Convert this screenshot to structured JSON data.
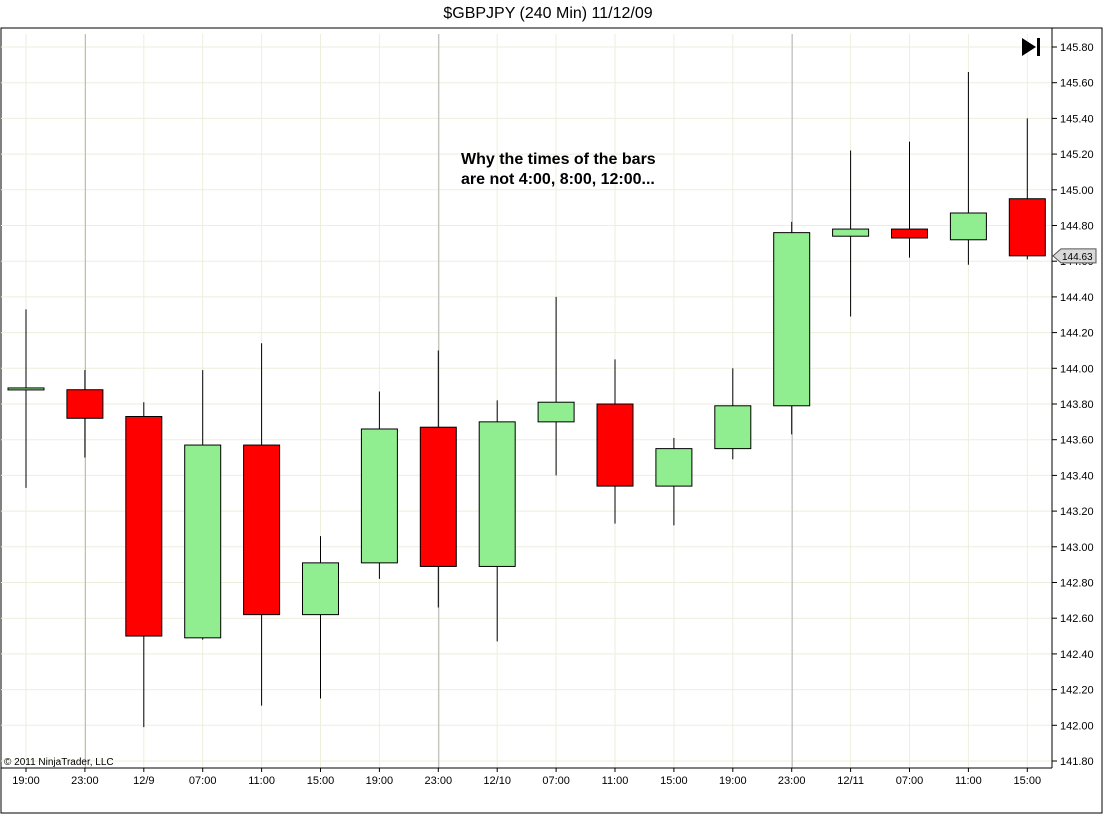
{
  "title": "$GBPJPY (240 Min)  11/12/09",
  "annotation_lines": [
    "Why the times of the bars",
    "are not 4:00, 8:00, 12:00..."
  ],
  "copyright": "© 2011 NinjaTrader, LLC",
  "last_price_label": "144.63",
  "colors": {
    "up": "#90ee90",
    "down": "#ff0000",
    "outline": "#000000",
    "grid": "#eeeedd",
    "session": "#b4b4b4"
  },
  "icons": {
    "play_end": "skip-to-end-icon"
  },
  "chart_data": {
    "type": "candlestick",
    "x_tick_labels": [
      "19:00",
      "23:00",
      "12/9",
      "07:00",
      "11:00",
      "15:00",
      "19:00",
      "23:00",
      "12/10",
      "07:00",
      "11:00",
      "15:00",
      "19:00",
      "23:00",
      "12/11",
      "07:00",
      "11:00",
      "15:00"
    ],
    "session_break_indices": [
      1,
      7,
      13
    ],
    "ylim": [
      141.8,
      145.85
    ],
    "y_ticks": [
      141.8,
      142.0,
      142.2,
      142.4,
      142.6,
      142.8,
      143.0,
      143.2,
      143.4,
      143.6,
      143.8,
      144.0,
      144.2,
      144.4,
      144.6,
      144.8,
      145.0,
      145.2,
      145.4,
      145.6,
      145.8
    ],
    "y_tick_labels": [
      "141.80",
      "142.00",
      "142.20",
      "142.40",
      "142.60",
      "142.80",
      "143.00",
      "143.20",
      "143.40",
      "143.60",
      "143.80",
      "144.00",
      "144.20",
      "144.40",
      "144.60",
      "144.80",
      "145.00",
      "145.20",
      "145.40",
      "145.60",
      "145.80"
    ],
    "bars": [
      {
        "time": "19:00",
        "open": 143.88,
        "high": 144.33,
        "low": 143.33,
        "close": 143.89
      },
      {
        "time": "23:00",
        "open": 143.88,
        "high": 143.99,
        "low": 143.5,
        "close": 143.72
      },
      {
        "time": "12/9",
        "open": 143.73,
        "high": 143.81,
        "low": 141.99,
        "close": 142.5
      },
      {
        "time": "07:00",
        "open": 142.49,
        "high": 143.99,
        "low": 142.48,
        "close": 143.57
      },
      {
        "time": "11:00",
        "open": 143.57,
        "high": 144.14,
        "low": 142.11,
        "close": 142.62
      },
      {
        "time": "15:00",
        "open": 142.62,
        "high": 143.06,
        "low": 142.15,
        "close": 142.91
      },
      {
        "time": "19:00",
        "open": 142.91,
        "high": 143.87,
        "low": 142.82,
        "close": 143.66
      },
      {
        "time": "23:00",
        "open": 143.67,
        "high": 144.1,
        "low": 142.66,
        "close": 142.89
      },
      {
        "time": "12/10",
        "open": 142.89,
        "high": 143.82,
        "low": 142.47,
        "close": 143.7
      },
      {
        "time": "07:00",
        "open": 143.7,
        "high": 144.4,
        "low": 143.4,
        "close": 143.81
      },
      {
        "time": "11:00",
        "open": 143.8,
        "high": 144.05,
        "low": 143.13,
        "close": 143.34
      },
      {
        "time": "15:00",
        "open": 143.34,
        "high": 143.61,
        "low": 143.12,
        "close": 143.55
      },
      {
        "time": "19:00",
        "open": 143.55,
        "high": 144.0,
        "low": 143.49,
        "close": 143.79
      },
      {
        "time": "23:00",
        "open": 143.79,
        "high": 144.82,
        "low": 143.63,
        "close": 144.76
      },
      {
        "time": "12/11",
        "open": 144.74,
        "high": 145.22,
        "low": 144.29,
        "close": 144.78
      },
      {
        "time": "07:00",
        "open": 144.78,
        "high": 145.27,
        "low": 144.62,
        "close": 144.73
      },
      {
        "time": "11:00",
        "open": 144.72,
        "high": 145.66,
        "low": 144.58,
        "close": 144.87
      },
      {
        "time": "15:00",
        "open": 144.95,
        "high": 145.4,
        "low": 144.61,
        "close": 144.63
      }
    ]
  }
}
